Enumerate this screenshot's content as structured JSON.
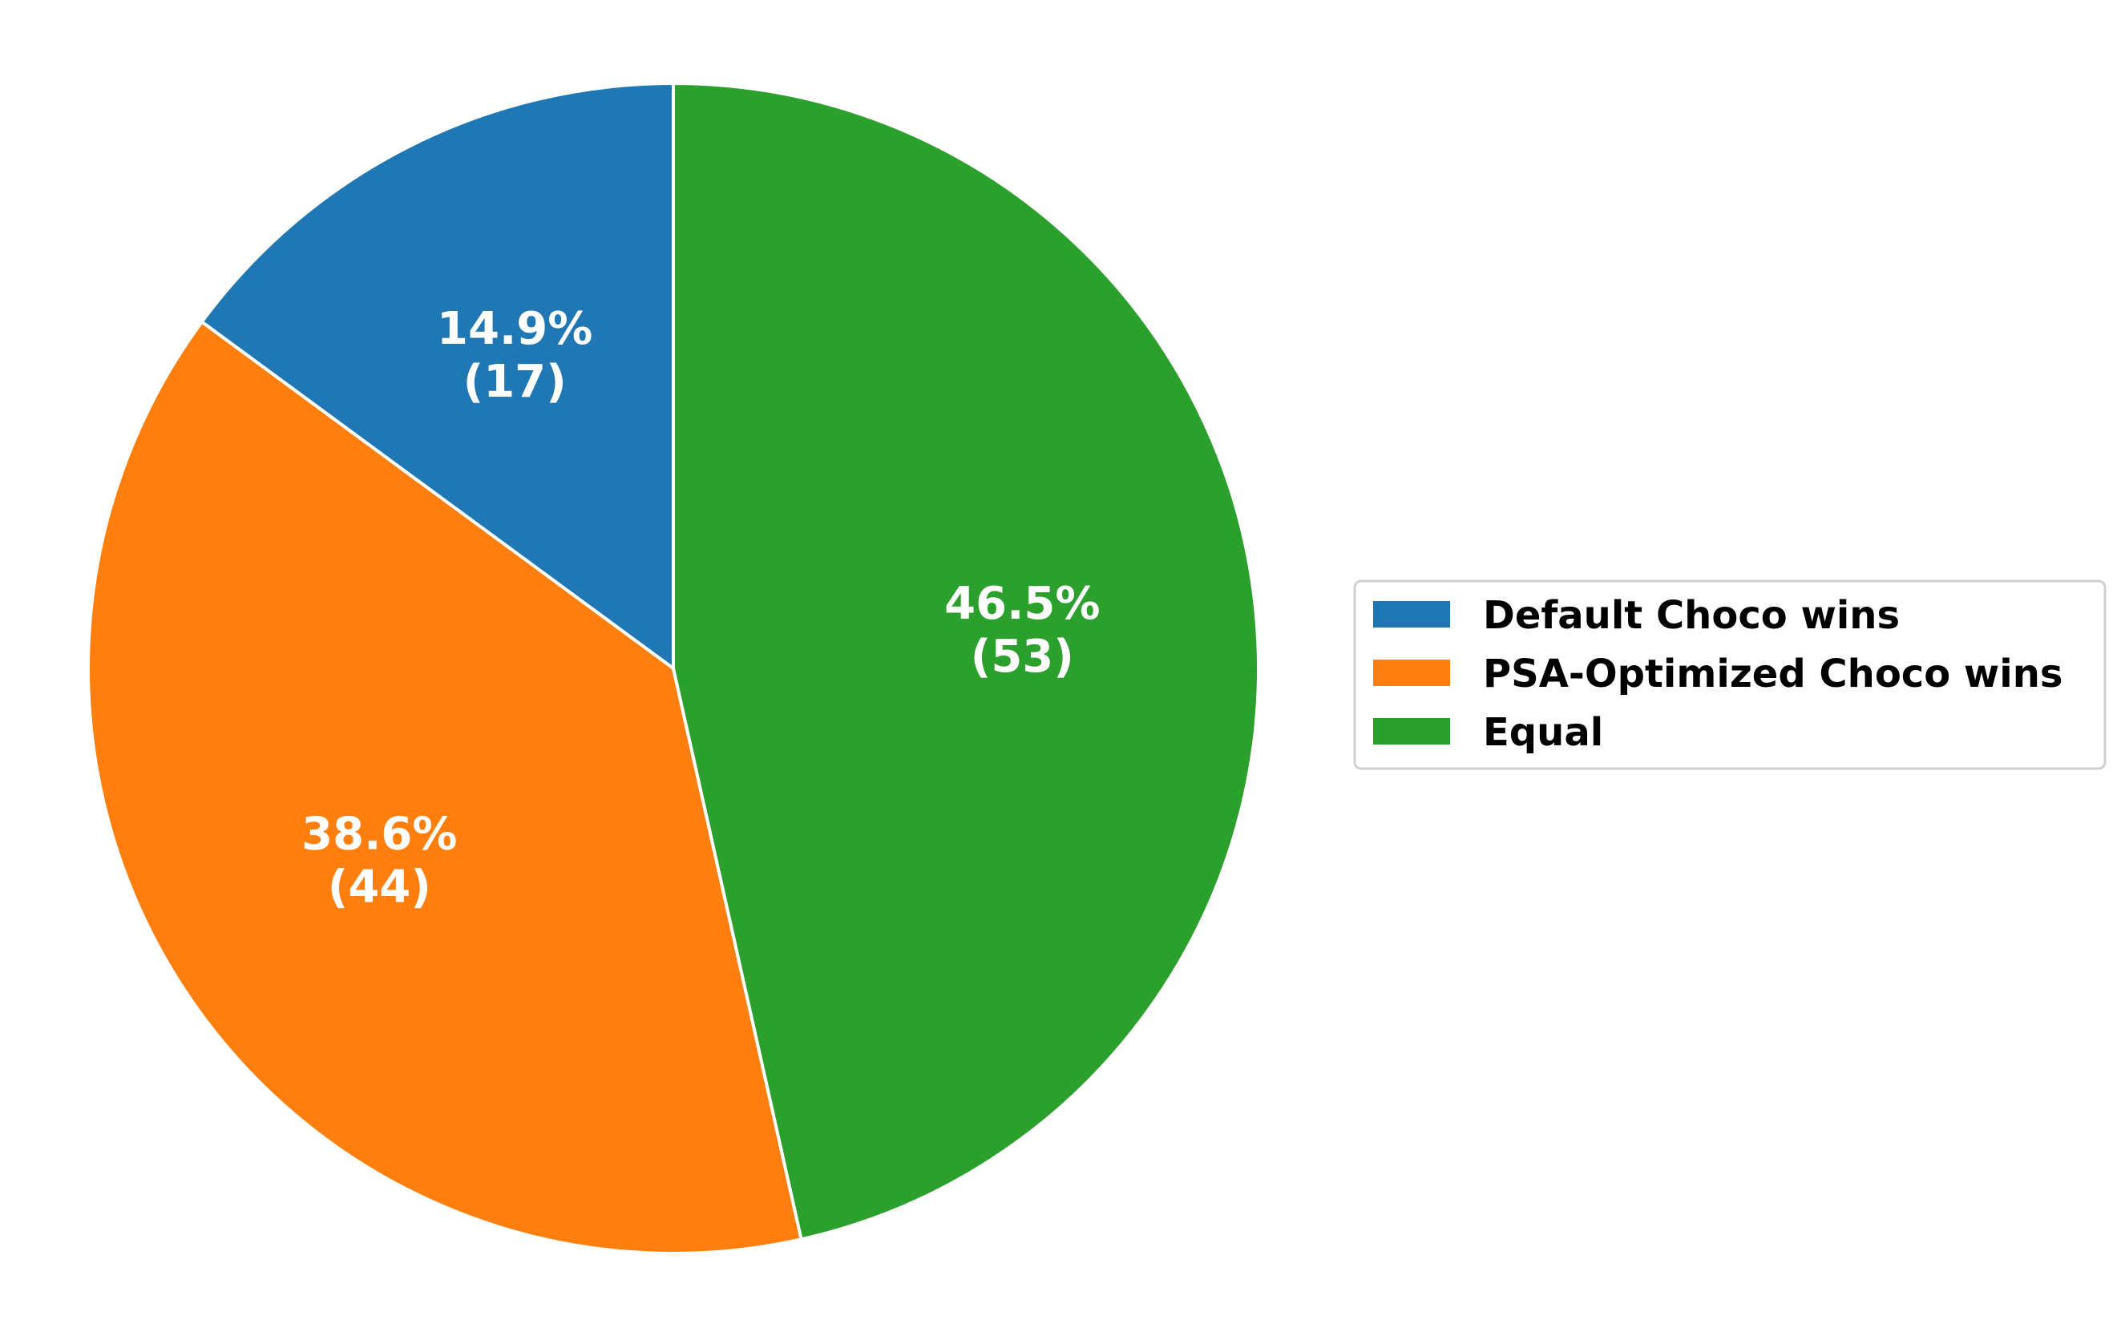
{
  "chart_data": {
    "type": "pie",
    "title": "",
    "start_angle_deg": 90,
    "direction": "counterclockwise",
    "legend_position": "right",
    "slices": [
      {
        "label": "Default Choco wins",
        "count": 17,
        "percent": "14.9%",
        "count_text": "(17)",
        "color": "#1f77b4"
      },
      {
        "label": "PSA-Optimized Choco wins",
        "count": 44,
        "percent": "38.6%",
        "count_text": "(44)",
        "color": "#ff7f0e"
      },
      {
        "label": "Equal",
        "count": 53,
        "percent": "46.5%",
        "count_text": "(53)",
        "color": "#2ca02c"
      }
    ],
    "edge_color": "#ffffff"
  }
}
